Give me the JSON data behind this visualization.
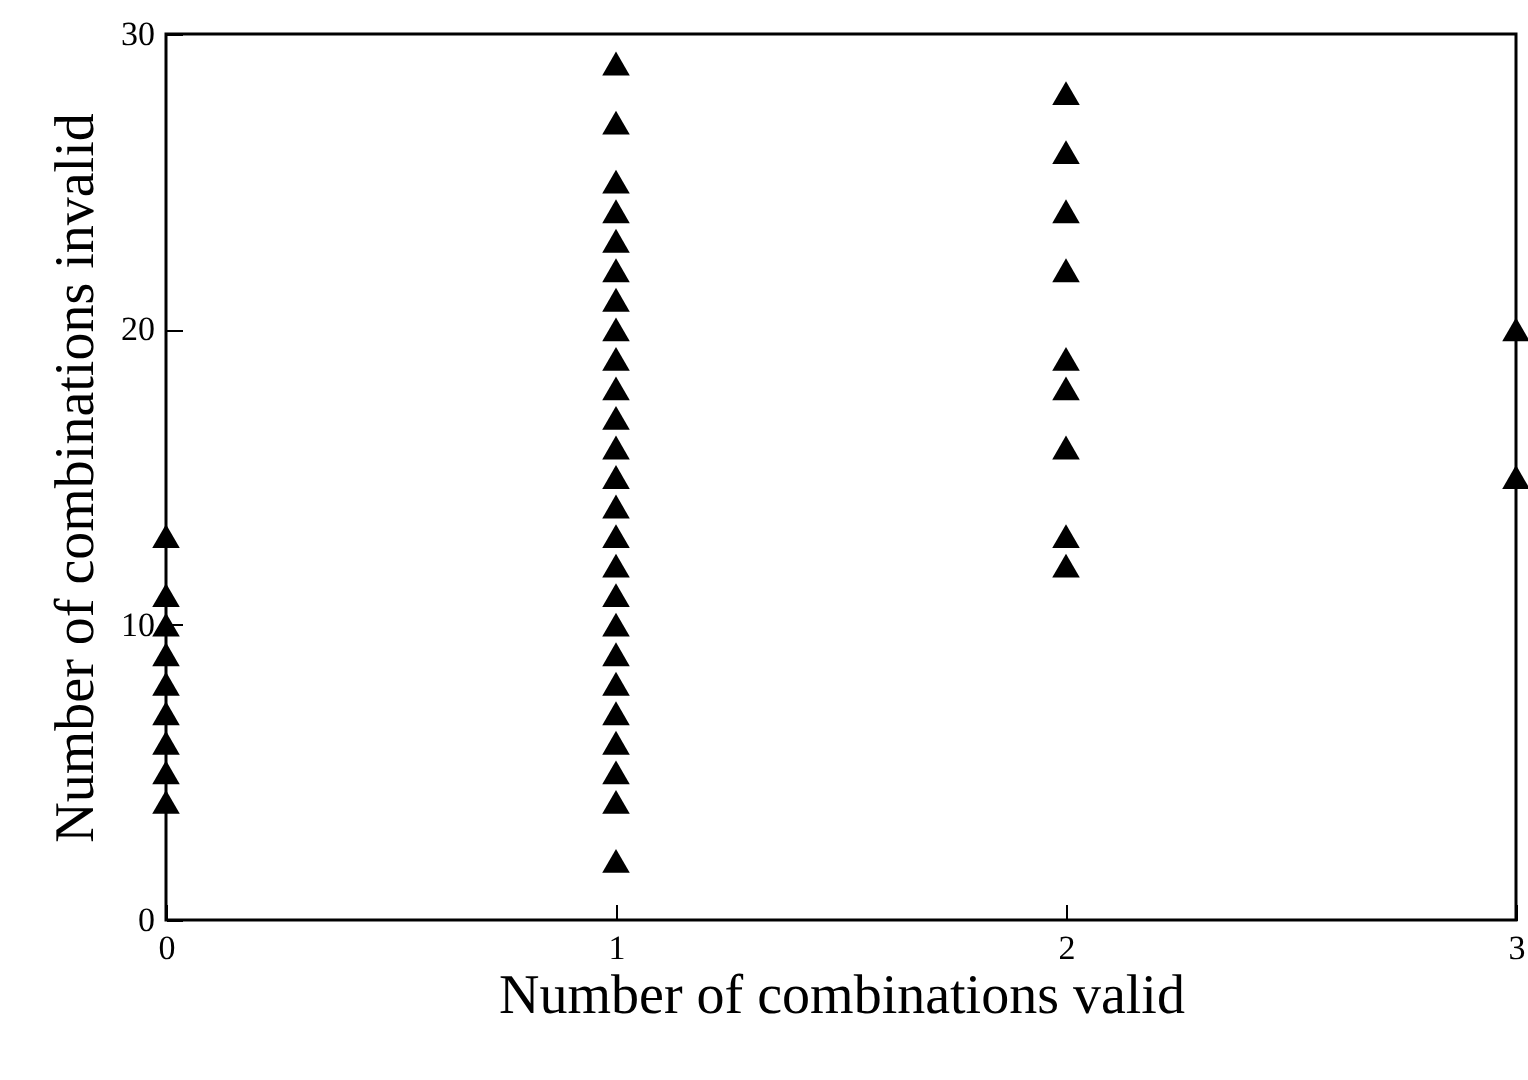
{
  "chart_data": {
    "type": "scatter",
    "xlabel": "Number of combinations valid",
    "ylabel": "Number of combinations invalid",
    "x": [
      0,
      0,
      0,
      0,
      0,
      0,
      0,
      0,
      0,
      1,
      1,
      1,
      1,
      1,
      1,
      1,
      1,
      1,
      1,
      1,
      1,
      1,
      1,
      1,
      1,
      1,
      1,
      1,
      1,
      1,
      1,
      1,
      1,
      1,
      2,
      2,
      2,
      2,
      2,
      2,
      2,
      2,
      2,
      3,
      3
    ],
    "series": [
      {
        "color": "#000000",
        "values": [
          4,
          5,
          6,
          7,
          8,
          9,
          10,
          11,
          13,
          2,
          4,
          5,
          6,
          7,
          8,
          9,
          10,
          11,
          12,
          13,
          14,
          15,
          16,
          17,
          18,
          19,
          20,
          21,
          22,
          23,
          24,
          25,
          27,
          29,
          12,
          13,
          16,
          18,
          19,
          22,
          24,
          26,
          28,
          15,
          20
        ]
      }
    ],
    "marker": "triangle",
    "xlim": [
      0,
      3
    ],
    "ylim": [
      0,
      30
    ],
    "xticks": [
      0,
      1,
      2,
      3
    ],
    "yticks": [
      0,
      10,
      20,
      30
    ]
  }
}
